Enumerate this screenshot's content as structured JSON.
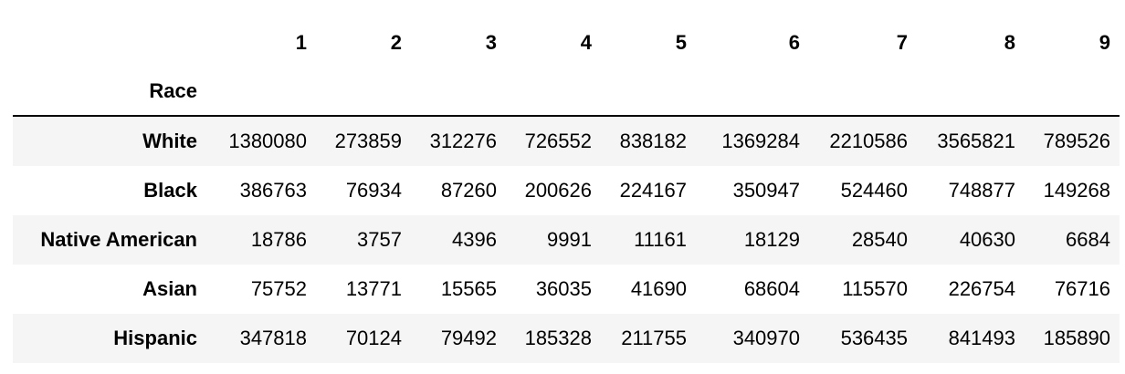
{
  "table": {
    "index_name": "Race",
    "columns": [
      "1",
      "2",
      "3",
      "4",
      "5",
      "6",
      "7",
      "8",
      "9"
    ],
    "rows": [
      {
        "label": "White",
        "values": [
          "1380080",
          "273859",
          "312276",
          "726552",
          "838182",
          "1369284",
          "2210586",
          "3565821",
          "789526"
        ]
      },
      {
        "label": "Black",
        "values": [
          "386763",
          "76934",
          "87260",
          "200626",
          "224167",
          "350947",
          "524460",
          "748877",
          "149268"
        ]
      },
      {
        "label": "Native American",
        "values": [
          "18786",
          "3757",
          "4396",
          "9991",
          "11161",
          "18129",
          "28540",
          "40630",
          "6684"
        ]
      },
      {
        "label": "Asian",
        "values": [
          "75752",
          "13771",
          "15565",
          "36035",
          "41690",
          "68604",
          "115570",
          "226754",
          "76716"
        ]
      },
      {
        "label": "Hispanic",
        "values": [
          "347818",
          "70124",
          "79492",
          "185328",
          "211755",
          "340970",
          "536435",
          "841493",
          "185890"
        ]
      }
    ]
  }
}
